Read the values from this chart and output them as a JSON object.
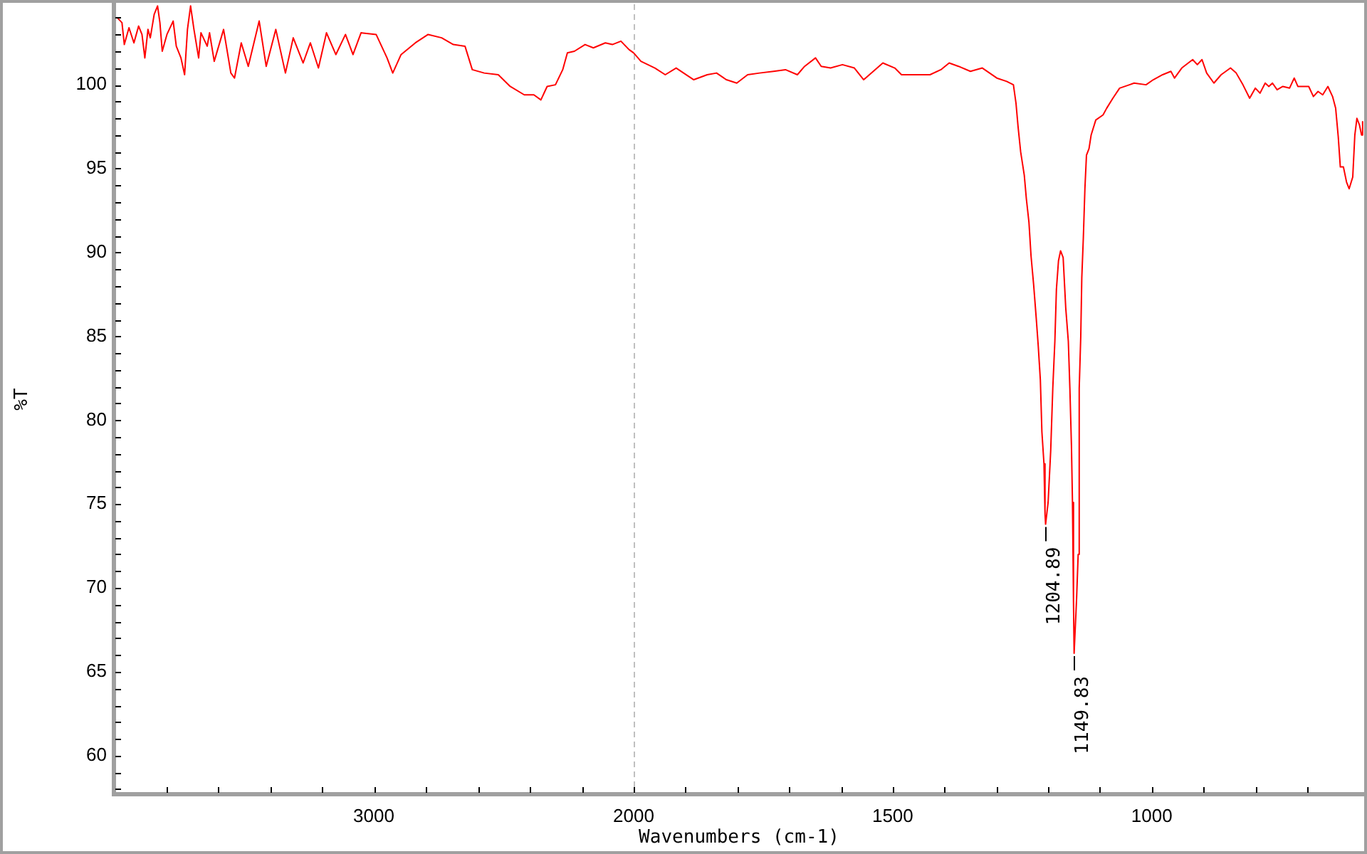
{
  "chart_data": [
    {
      "type": "line",
      "ylabel": "%T",
      "color": "#ff0000",
      "x": [
        3987,
        3969,
        3960,
        3942,
        3923,
        3905,
        3892,
        3881,
        3869,
        3860,
        3845,
        3832,
        3823,
        3814,
        3796,
        3772,
        3760,
        3742,
        3728,
        3717,
        3705,
        3692,
        3674,
        3665,
        3641,
        3632,
        3614,
        3578,
        3550,
        3536,
        3510,
        3483,
        3441,
        3414,
        3377,
        3340,
        3310,
        3272,
        3244,
        3213,
        3182,
        3146,
        3109,
        3080,
        3049,
        2991,
        2949,
        2927,
        2895,
        2840,
        2791,
        2739,
        2694,
        2649,
        2621,
        2575,
        2521,
        2475,
        2421,
        2384,
        2357,
        2333,
        2301,
        2273,
        2255,
        2228,
        2187,
        2155,
        2109,
        2082,
        2049,
        2018,
        2000
      ],
      "values": [
        104.0,
        103.7,
        102.4,
        103.4,
        102.5,
        103.5,
        103.0,
        101.6,
        103.3,
        102.8,
        104.2,
        104.7,
        103.7,
        102.0,
        103.0,
        103.8,
        102.3,
        101.6,
        100.6,
        103.3,
        104.7,
        103.3,
        101.6,
        103.1,
        102.3,
        103.1,
        101.4,
        103.3,
        100.7,
        100.4,
        102.5,
        101.1,
        103.8,
        101.1,
        103.3,
        100.7,
        102.8,
        101.3,
        102.5,
        101.0,
        103.1,
        101.8,
        103.0,
        101.8,
        103.1,
        103.0,
        101.6,
        100.7,
        101.8,
        102.5,
        103.0,
        102.8,
        102.4,
        102.3,
        100.9,
        100.7,
        100.6,
        99.9,
        99.4,
        99.4,
        99.1,
        99.9,
        100.0,
        100.9,
        101.9,
        102.0,
        102.4,
        102.2,
        102.5,
        102.4,
        102.6,
        102.1,
        101.9
      ],
      "xlim": [
        4000,
        2000
      ],
      "ylim": [
        57.7,
        104.8
      ],
      "xticks": [
        {
          "value": 3800,
          "label": null
        },
        {
          "value": 3600,
          "label": null
        },
        {
          "value": 3400,
          "label": null
        },
        {
          "value": 3200,
          "label": null
        },
        3000,
        {
          "value": 2800,
          "label": null
        },
        {
          "value": 2600,
          "label": null
        },
        {
          "value": 2400,
          "label": null
        },
        {
          "value": 2200,
          "label": null
        },
        2000
      ],
      "yticks": [
        {
          "value": 58,
          "label": null
        },
        {
          "value": 59,
          "label": null
        },
        60,
        {
          "value": 61,
          "label": null
        },
        {
          "value": 62,
          "label": null
        },
        {
          "value": 63,
          "label": null
        },
        {
          "value": 64,
          "label": null
        },
        65,
        {
          "value": 66,
          "label": null
        },
        {
          "value": 67,
          "label": null
        },
        {
          "value": 68,
          "label": null
        },
        {
          "value": 69,
          "label": null
        },
        70,
        {
          "value": 71,
          "label": null
        },
        {
          "value": 72,
          "label": null
        },
        {
          "value": 73,
          "label": null
        },
        {
          "value": 74,
          "label": null
        },
        75,
        {
          "value": 76,
          "label": null
        },
        {
          "value": 77,
          "label": null
        },
        {
          "value": 78,
          "label": null
        },
        {
          "value": 79,
          "label": null
        },
        80,
        {
          "value": 81,
          "label": null
        },
        {
          "value": 82,
          "label": null
        },
        {
          "value": 83,
          "label": null
        },
        {
          "value": 84,
          "label": null
        },
        85,
        {
          "value": 86,
          "label": null
        },
        {
          "value": 87,
          "label": null
        },
        {
          "value": 88,
          "label": null
        },
        {
          "value": 89,
          "label": null
        },
        90,
        {
          "value": 91,
          "label": null
        },
        {
          "value": 92,
          "label": null
        },
        {
          "value": 93,
          "label": null
        },
        {
          "value": 94,
          "label": null
        },
        95,
        {
          "value": 96,
          "label": null
        },
        {
          "value": 97,
          "label": null
        },
        {
          "value": 98,
          "label": null
        },
        {
          "value": 99,
          "label": null
        },
        100,
        {
          "value": 101,
          "label": null
        },
        {
          "value": 102,
          "label": null
        },
        {
          "value": 103,
          "label": null
        },
        {
          "value": 104,
          "label": null
        }
      ]
    },
    {
      "type": "line",
      "xlabel": "Wavenumbers (cm-1)",
      "color": "#ff0000",
      "x": [
        2000,
        1986,
        1959,
        1939,
        1918,
        1884,
        1858,
        1840,
        1821,
        1801,
        1780,
        1757,
        1730,
        1707,
        1684,
        1670,
        1649,
        1638,
        1620,
        1597,
        1574,
        1556,
        1519,
        1496,
        1483,
        1455,
        1428,
        1407,
        1391,
        1373,
        1350,
        1327,
        1299,
        1280,
        1267,
        1262,
        1258,
        1253,
        1246,
        1242,
        1237,
        1233,
        1228,
        1223,
        1219,
        1215,
        1212,
        1208,
        1206,
        1204.89,
        1200,
        1195,
        1191,
        1187,
        1184,
        1180,
        1176,
        1171,
        1166,
        1161,
        1158,
        1155,
        1153,
        1151,
        1149.83,
        1145,
        1142,
        1140,
        1137,
        1135,
        1132,
        1129,
        1126,
        1121,
        1117,
        1108,
        1094,
        1087,
        1075,
        1062,
        1043,
        1034,
        1011,
        997,
        979,
        963,
        956,
        942,
        921,
        912,
        903,
        894,
        880,
        866,
        848,
        837,
        824,
        811,
        800,
        791,
        781,
        774,
        767,
        758,
        747,
        734,
        725,
        718,
        697,
        688,
        679,
        670,
        660,
        651,
        645,
        640,
        636,
        630,
        624,
        619,
        612,
        608,
        604,
        599,
        595,
        593
      ],
      "values": [
        101.9,
        101.4,
        101.0,
        100.6,
        101.0,
        100.3,
        100.6,
        100.7,
        100.3,
        100.1,
        100.6,
        100.7,
        100.8,
        100.9,
        100.6,
        101.1,
        101.6,
        101.1,
        101.0,
        101.2,
        101.0,
        100.3,
        101.3,
        101.0,
        100.6,
        100.6,
        100.6,
        100.9,
        101.3,
        101.1,
        100.8,
        101.0,
        100.4,
        100.2,
        100.0,
        98.9,
        97.5,
        96.0,
        94.6,
        93.2,
        91.8,
        89.8,
        88.1,
        86.1,
        84.4,
        82.4,
        79.3,
        77.4,
        74.4,
        73.8,
        75.1,
        78.2,
        81.9,
        84.7,
        87.8,
        89.5,
        90.1,
        89.7,
        86.7,
        84.7,
        81.9,
        78.5,
        75.1,
        69.1,
        66.1,
        69.4,
        72.0,
        81.9,
        85.0,
        88.5,
        90.9,
        93.8,
        95.8,
        96.2,
        97.0,
        97.9,
        98.2,
        98.6,
        99.2,
        99.8,
        100.0,
        100.1,
        100.0,
        100.3,
        100.6,
        100.8,
        100.4,
        101.0,
        101.5,
        101.2,
        101.5,
        100.7,
        100.1,
        100.6,
        101.0,
        100.7,
        100.0,
        99.2,
        99.8,
        99.5,
        100.1,
        99.9,
        100.1,
        99.7,
        99.9,
        99.8,
        100.4,
        99.9,
        99.9,
        99.3,
        99.6,
        99.4,
        99.9,
        99.3,
        98.6,
        96.9,
        95.1,
        95.1,
        94.2,
        93.8,
        94.5,
        97.0,
        98.0,
        97.6,
        97.0,
        97.8
      ],
      "xlim": [
        2000,
        590
      ],
      "ylim": [
        57.7,
        104.8
      ],
      "xticks": [
        {
          "value": 2000,
          "label": null
        },
        {
          "value": 1900,
          "label": null
        },
        {
          "value": 1800,
          "label": null
        },
        {
          "value": 1700,
          "label": null
        },
        {
          "value": 1600,
          "label": null
        },
        1500,
        {
          "value": 1400,
          "label": null
        },
        {
          "value": 1300,
          "label": null
        },
        {
          "value": 1200,
          "label": null
        },
        {
          "value": 1100,
          "label": null
        },
        1000,
        {
          "value": 900,
          "label": null
        },
        {
          "value": 800,
          "label": null
        },
        {
          "value": 700,
          "label": null
        }
      ],
      "tick_labels": "x",
      "ref_lines": [
        {
          "axis": "x",
          "value": 2000,
          "color": "#c0c0c0",
          "line_style": "dashed"
        }
      ],
      "annotations": [
        {
          "text": "1204.89",
          "x": 1204.89,
          "y": 73.8
        },
        {
          "text": "1149.83",
          "x": 1149.83,
          "y": 66.1
        }
      ]
    }
  ]
}
